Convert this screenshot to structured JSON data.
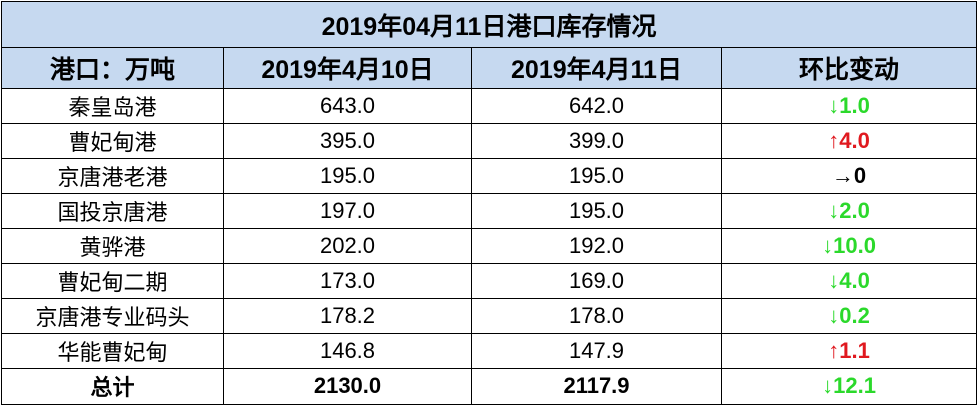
{
  "table": {
    "title": "2019年04月11日港口库存情况",
    "header": [
      "港口：万吨",
      "2019年4月10日",
      "2019年4月11日",
      "环比变动"
    ],
    "rows": [
      [
        "秦皇岛港",
        "643.0",
        "642.0",
        {
          "arrow": "↓",
          "value": "1.0",
          "color": "#2bd92b"
        }
      ],
      [
        "曹妃甸港",
        "395.0",
        "399.0",
        {
          "arrow": "↑",
          "value": "4.0",
          "color": "#e0191f"
        }
      ],
      [
        "京唐港老港",
        "195.0",
        "195.0",
        {
          "arrow": "→",
          "value": "0",
          "color": "#000000"
        }
      ],
      [
        "国投京唐港",
        "197.0",
        "195.0",
        {
          "arrow": "↓",
          "value": "2.0",
          "color": "#2bd92b"
        }
      ],
      [
        "黄骅港",
        "202.0",
        "192.0",
        {
          "arrow": "↓",
          "value": "10.0",
          "color": "#2bd92b"
        }
      ],
      [
        "曹妃甸二期",
        "173.0",
        "169.0",
        {
          "arrow": "↓",
          "value": "4.0",
          "color": "#2bd92b"
        }
      ],
      [
        "京唐港专业码头",
        "178.2",
        "178.0",
        {
          "arrow": "↓",
          "value": "0.2",
          "color": "#2bd92b"
        }
      ],
      [
        "华能曹妃甸",
        "146.8",
        "147.9",
        {
          "arrow": "↑",
          "value": "1.1",
          "color": "#e0191f"
        }
      ]
    ],
    "total": [
      "总计",
      "2130.0",
      "2117.9",
      {
        "arrow": "↓",
        "value": "12.1",
        "color": "#2bd92b"
      }
    ]
  }
}
